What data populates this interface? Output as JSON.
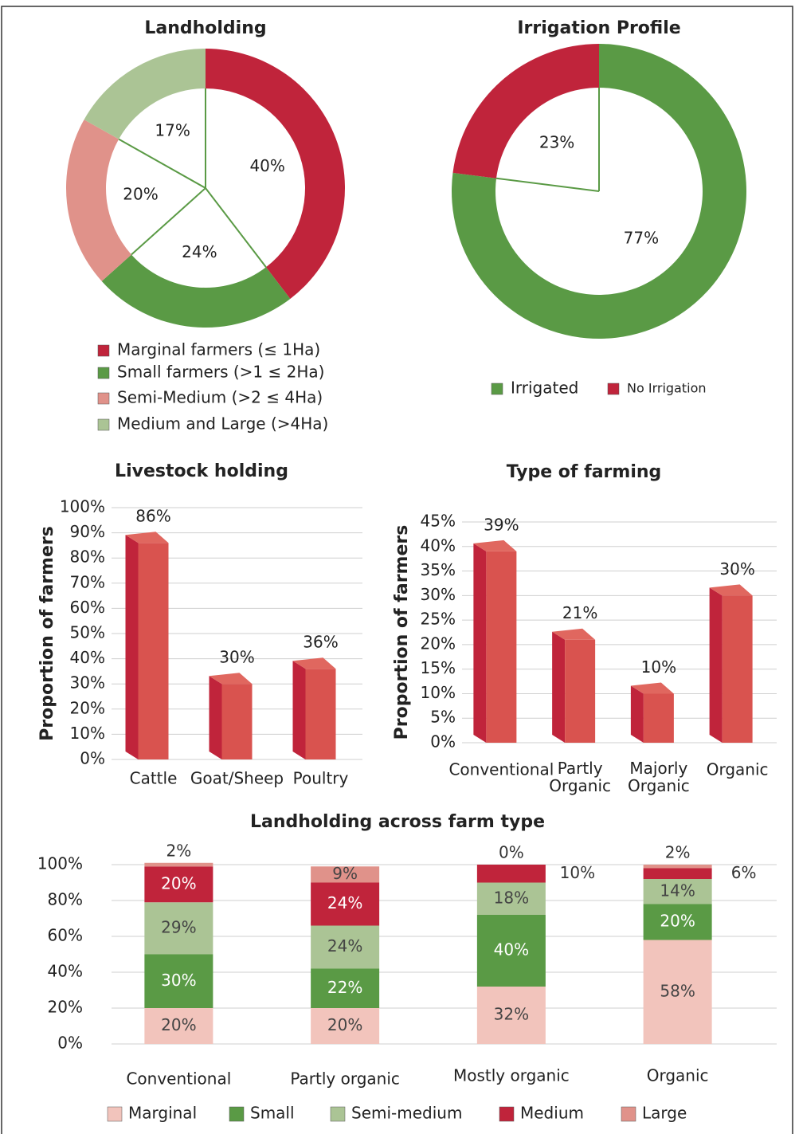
{
  "chart_data": [
    {
      "type": "donut",
      "title": "Landholding",
      "categories": [
        "Marginal farmers (≤ 1Ha)",
        "Small farmers (>1 ≤ 2Ha)",
        "Semi-Medium (>2 ≤ 4Ha)",
        "Medium and Large (>4Ha)"
      ],
      "values": [
        40,
        24,
        20,
        17
      ],
      "value_labels": [
        "40%",
        "24%",
        "20%",
        "17%"
      ],
      "colors": [
        "#c0243b",
        "#5a9a45",
        "#e0928a",
        "#abc495"
      ]
    },
    {
      "type": "donut",
      "title": "Irrigation Profile",
      "categories": [
        "Irrigated",
        "No Irrigation"
      ],
      "values": [
        77,
        23
      ],
      "value_labels": [
        "77%",
        "23%"
      ],
      "colors": [
        "#5a9a45",
        "#c0243b"
      ]
    },
    {
      "type": "bar",
      "title": "Livestock holding",
      "y_label": "Proportion of farmers",
      "categories": [
        "Cattle",
        "Goat/Sheep",
        "Poultry"
      ],
      "values": [
        86,
        30,
        36
      ],
      "value_labels": [
        "86%",
        "30%",
        "36%"
      ],
      "color": "#d9534f",
      "ylim": [
        0,
        100
      ],
      "yticks": [
        {
          "value": 0,
          "label": "0%"
        },
        {
          "value": 10,
          "label": "10%"
        },
        {
          "value": 20,
          "label": "20%"
        },
        {
          "value": 30,
          "label": "30%"
        },
        {
          "value": 40,
          "label": "40%"
        },
        {
          "value": 50,
          "label": "50%"
        },
        {
          "value": 60,
          "label": "60%"
        },
        {
          "value": 70,
          "label": "70%"
        },
        {
          "value": 80,
          "label": "80%"
        },
        {
          "value": 90,
          "label": "90%"
        },
        {
          "value": 100,
          "label": "100%"
        }
      ],
      "grid": true
    },
    {
      "type": "bar",
      "title": "Type of farming",
      "y_label": "Proportion of farmers",
      "categories": [
        "Conventional",
        "Partly Organic",
        "Majorly Organic",
        "Organic"
      ],
      "values": [
        39,
        21,
        10,
        30
      ],
      "value_labels": [
        "39%",
        "21%",
        "10%",
        "30%"
      ],
      "color": "#d9534f",
      "ylim": [
        0,
        45
      ],
      "yticks": [
        {
          "value": 0,
          "label": "0%"
        },
        {
          "value": 5,
          "label": "5%"
        },
        {
          "value": 10,
          "label": "10%"
        },
        {
          "value": 15,
          "label": "15%"
        },
        {
          "value": 20,
          "label": "20%"
        },
        {
          "value": 25,
          "label": "25%"
        },
        {
          "value": 30,
          "label": "30%"
        },
        {
          "value": 35,
          "label": "35%"
        },
        {
          "value": 40,
          "label": "40%"
        },
        {
          "value": 45,
          "label": "45%"
        }
      ],
      "grid": true
    },
    {
      "type": "stacked_bar",
      "title": "Landholding across farm type",
      "categories": [
        "Conventional",
        "Partly organic",
        "Mostly organic",
        "Organic"
      ],
      "series": [
        {
          "name": "Marginal",
          "color": "#f2c4bc",
          "values": [
            20,
            20,
            32,
            58
          ],
          "value_labels": [
            "20%",
            "20%",
            "32%",
            "58%"
          ]
        },
        {
          "name": "Small",
          "color": "#5a9a45",
          "values": [
            30,
            22,
            40,
            20
          ],
          "value_labels": [
            "30%",
            "22%",
            "40%",
            "20%"
          ]
        },
        {
          "name": "Semi-medium",
          "color": "#abc495",
          "values": [
            29,
            24,
            18,
            14
          ],
          "value_labels": [
            "29%",
            "24%",
            "18%",
            "14%"
          ]
        },
        {
          "name": "Medium",
          "color": "#c0243b",
          "values": [
            20,
            24,
            10,
            6
          ],
          "value_labels": [
            "20%",
            "24%",
            "10%",
            "6%"
          ]
        },
        {
          "name": "Large",
          "color": "#e0928a",
          "values": [
            2,
            9,
            0,
            2
          ],
          "value_labels": [
            "2%",
            "9%",
            "0%",
            "2%"
          ]
        }
      ],
      "ylim": [
        0,
        100
      ],
      "yticks": [
        {
          "value": 0,
          "label": "0%"
        },
        {
          "value": 20,
          "label": "20%"
        },
        {
          "value": 40,
          "label": "40%"
        },
        {
          "value": 60,
          "label": "60%"
        },
        {
          "value": 80,
          "label": "80%"
        },
        {
          "value": 100,
          "label": "100%"
        }
      ],
      "grid": true
    }
  ]
}
